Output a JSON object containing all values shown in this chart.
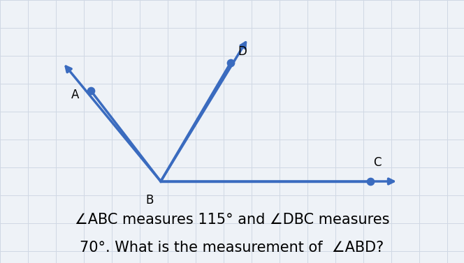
{
  "background_color": "#eef2f7",
  "grid_color": "#d0d8e4",
  "line_color": "#3a6bbf",
  "dot_color": "#3a6bbf",
  "B": [
    230,
    260
  ],
  "C_dot": [
    530,
    260
  ],
  "C_arrow": [
    570,
    260
  ],
  "A_dot": [
    130,
    130
  ],
  "A_arrow": [
    90,
    90
  ],
  "D_dot": [
    330,
    90
  ],
  "D_arrow": [
    355,
    55
  ],
  "label_B": "B",
  "label_C": "C",
  "label_A": "A",
  "label_D": "D",
  "text_line1": "∠ABC measures 115° and ∠DBC measures",
  "text_line2": "70°. What is the measurement of  ∠ABD?",
  "xmin": 0,
  "xmax": 664,
  "ymin": 0,
  "ymax": 377,
  "fig_width": 6.64,
  "fig_height": 3.77,
  "dpi": 100
}
